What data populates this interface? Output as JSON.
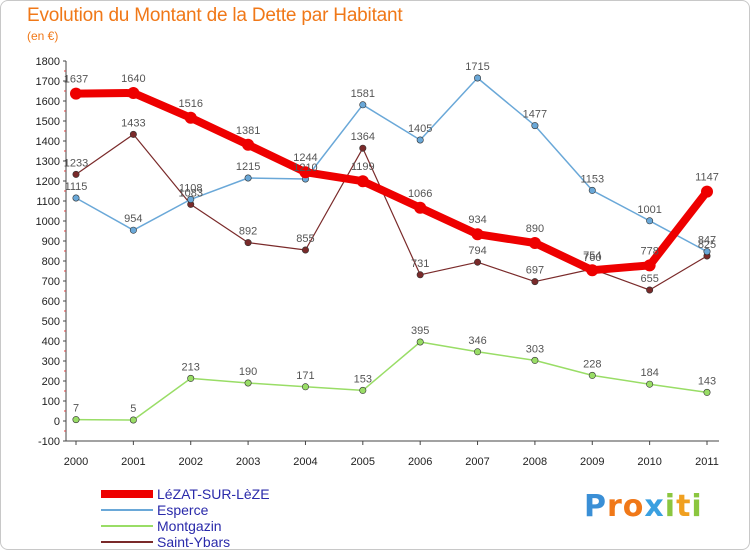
{
  "title": "Evolution du Montant de la Dette par Habitant",
  "subtitle": "(en €)",
  "logo": {
    "text": "Proxiti",
    "letters": [
      {
        "ch": "P",
        "color": "#3a8fd6"
      },
      {
        "ch": "r",
        "color": "#f07818"
      },
      {
        "ch": "o",
        "color": "#f07818"
      },
      {
        "ch": "x",
        "color": "#3aa0e0"
      },
      {
        "ch": "i",
        "color": "#8bc63f"
      },
      {
        "ch": "t",
        "color": "#f0a020"
      },
      {
        "ch": "i",
        "color": "#8bc63f"
      }
    ]
  },
  "chart_data": {
    "type": "line",
    "title": "Evolution du Montant de la Dette par Habitant",
    "ylabel": "(en €)",
    "x": [
      "2000",
      "2001",
      "2002",
      "2003",
      "2004",
      "2005",
      "2006",
      "2007",
      "2008",
      "2009",
      "2010",
      "2011"
    ],
    "ylim": [
      -100,
      1800
    ],
    "yticks": [
      -100,
      0,
      100,
      200,
      300,
      400,
      500,
      600,
      700,
      800,
      900,
      1000,
      1100,
      1200,
      1300,
      1400,
      1500,
      1600,
      1700,
      1800
    ],
    "grid": false,
    "legend": "bottom-left",
    "series": [
      {
        "name": "LéZAT-SUR-LèZE",
        "color": "#ee0000",
        "width": 8,
        "values": [
          1637,
          1640,
          1516,
          1381,
          1244,
          1199,
          1066,
          934,
          890,
          754,
          778,
          1147
        ]
      },
      {
        "name": "Esperce",
        "color": "#6aa8d8",
        "width": 1.5,
        "values": [
          1115,
          954,
          1108,
          1215,
          1210,
          1581,
          1405,
          1715,
          1477,
          1153,
          1001,
          847
        ]
      },
      {
        "name": "Montgazin",
        "color": "#99dd66",
        "width": 1.5,
        "values": [
          7,
          5,
          213,
          190,
          171,
          153,
          395,
          346,
          303,
          228,
          184,
          143
        ]
      },
      {
        "name": "Saint-Ybars",
        "color": "#7a2a2a",
        "width": 1.2,
        "values": [
          1233,
          1433,
          1083,
          892,
          855,
          1364,
          731,
          794,
          697,
          760,
          655,
          825
        ]
      }
    ]
  }
}
